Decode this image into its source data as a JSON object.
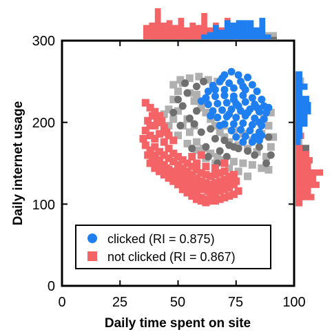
{
  "chart_data": {
    "type": "scatter",
    "xlabel": "Daily time spent on site",
    "ylabel": "Daily internet usage",
    "xlim": [
      0,
      100
    ],
    "ylim": [
      0,
      300
    ],
    "xticks": [
      0,
      25,
      50,
      75,
      100
    ],
    "yticks": [
      0,
      100,
      200,
      300
    ],
    "legend_position": "lower-center",
    "marginals": "top and right histograms",
    "series": [
      {
        "name": "clicked (RI = 0.875)",
        "marker": "circle",
        "color": "#1f7ff0",
        "shadow_color": "#6f6f6f",
        "points": [
          [
            70,
            258
          ],
          [
            73,
            262
          ],
          [
            76,
            258
          ],
          [
            80,
            255
          ],
          [
            65,
            245
          ],
          [
            68,
            250
          ],
          [
            72,
            248
          ],
          [
            77,
            250
          ],
          [
            82,
            246
          ],
          [
            63,
            238
          ],
          [
            66,
            240
          ],
          [
            70,
            240
          ],
          [
            74,
            242
          ],
          [
            79,
            240
          ],
          [
            84,
            238
          ],
          [
            62,
            230
          ],
          [
            66,
            232
          ],
          [
            70,
            233
          ],
          [
            74,
            232
          ],
          [
            78,
            233
          ],
          [
            82,
            230
          ],
          [
            86,
            228
          ],
          [
            63,
            222
          ],
          [
            67,
            223
          ],
          [
            71,
            224
          ],
          [
            75,
            223
          ],
          [
            79,
            225
          ],
          [
            83,
            222
          ],
          [
            87,
            220
          ],
          [
            65,
            214
          ],
          [
            69,
            215
          ],
          [
            73,
            216
          ],
          [
            77,
            214
          ],
          [
            81,
            216
          ],
          [
            85,
            213
          ],
          [
            88,
            212
          ],
          [
            67,
            206
          ],
          [
            71,
            207
          ],
          [
            75,
            206
          ],
          [
            79,
            208
          ],
          [
            83,
            205
          ],
          [
            87,
            204
          ],
          [
            70,
            198
          ],
          [
            74,
            198
          ],
          [
            78,
            199
          ],
          [
            82,
            197
          ],
          [
            86,
            196
          ],
          [
            73,
            190
          ],
          [
            77,
            191
          ],
          [
            81,
            190
          ],
          [
            85,
            188
          ],
          [
            75,
            182
          ],
          [
            79,
            183
          ],
          [
            83,
            182
          ],
          [
            86,
            184
          ],
          [
            78,
            176
          ],
          [
            82,
            176
          ],
          [
            85,
            178
          ],
          [
            60,
            226
          ],
          [
            64,
            208
          ],
          [
            68,
            196
          ],
          [
            89,
            218
          ],
          [
            69,
            254
          ],
          [
            78,
            244
          ],
          [
            85,
            200
          ],
          [
            72,
            210
          ],
          [
            76,
            220
          ],
          [
            80,
            212
          ],
          [
            74,
            228
          ],
          [
            84,
            218
          ]
        ],
        "shadow_points": [
          [
            50,
            228
          ],
          [
            54,
            236
          ],
          [
            58,
            214
          ],
          [
            55,
            205
          ],
          [
            60,
            188
          ],
          [
            64,
            192
          ],
          [
            58,
            244
          ],
          [
            52,
            220
          ],
          [
            66,
            180
          ],
          [
            70,
            178
          ],
          [
            62,
            170
          ],
          [
            68,
            165
          ],
          [
            74,
            170
          ],
          [
            57,
            198
          ],
          [
            85,
            170
          ],
          [
            89,
            182
          ],
          [
            90,
            160
          ],
          [
            80,
            165
          ],
          [
            63,
            158
          ],
          [
            53,
            248
          ],
          [
            56,
            168
          ],
          [
            61,
            250
          ],
          [
            72,
            172
          ],
          [
            76,
            168
          ],
          [
            48,
            212
          ],
          [
            51,
            196
          ],
          [
            88,
            150
          ],
          [
            67,
            150
          ],
          [
            83,
            160
          ],
          [
            71,
            158
          ]
        ]
      },
      {
        "name": "not clicked (RI = 0.867)",
        "marker": "square",
        "color": "#f46466",
        "shadow_color": "#b0b0b0",
        "points": [
          [
            36,
            224
          ],
          [
            38,
            218
          ],
          [
            40,
            213
          ],
          [
            42,
            208
          ],
          [
            40,
            196
          ],
          [
            37,
            202
          ],
          [
            36,
            190
          ],
          [
            38,
            184
          ],
          [
            40,
            180
          ],
          [
            42,
            186
          ],
          [
            44,
            194
          ],
          [
            36,
            172
          ],
          [
            38,
            166
          ],
          [
            40,
            160
          ],
          [
            42,
            154
          ],
          [
            44,
            148
          ],
          [
            46,
            142
          ],
          [
            48,
            136
          ],
          [
            50,
            130
          ],
          [
            52,
            124
          ],
          [
            54,
            120
          ],
          [
            56,
            116
          ],
          [
            58,
            112
          ],
          [
            60,
            108
          ],
          [
            62,
            106
          ],
          [
            64,
            104
          ],
          [
            66,
            104
          ],
          [
            68,
            106
          ],
          [
            70,
            108
          ],
          [
            72,
            110
          ],
          [
            74,
            112
          ],
          [
            76,
            116
          ],
          [
            38,
            150
          ],
          [
            40,
            144
          ],
          [
            42,
            140
          ],
          [
            44,
            136
          ],
          [
            46,
            132
          ],
          [
            48,
            128
          ],
          [
            50,
            124
          ],
          [
            52,
            118
          ],
          [
            54,
            114
          ],
          [
            56,
            110
          ],
          [
            58,
            106
          ],
          [
            60,
            104
          ],
          [
            62,
            102
          ],
          [
            64,
            108
          ],
          [
            66,
            112
          ],
          [
            68,
            116
          ],
          [
            70,
            118
          ],
          [
            72,
            120
          ],
          [
            74,
            124
          ],
          [
            40,
            170
          ],
          [
            42,
            164
          ],
          [
            44,
            160
          ],
          [
            46,
            156
          ],
          [
            48,
            152
          ],
          [
            50,
            148
          ],
          [
            52,
            144
          ],
          [
            54,
            140
          ],
          [
            56,
            136
          ],
          [
            58,
            132
          ],
          [
            60,
            128
          ],
          [
            62,
            126
          ],
          [
            64,
            124
          ],
          [
            66,
            126
          ],
          [
            68,
            128
          ],
          [
            70,
            130
          ],
          [
            72,
            134
          ],
          [
            74,
            136
          ],
          [
            44,
            176
          ],
          [
            46,
            168
          ],
          [
            48,
            162
          ],
          [
            50,
            158
          ],
          [
            52,
            154
          ],
          [
            54,
            150
          ],
          [
            56,
            146
          ],
          [
            58,
            142
          ],
          [
            60,
            138
          ],
          [
            62,
            136
          ],
          [
            64,
            134
          ],
          [
            66,
            136
          ],
          [
            68,
            138
          ],
          [
            70,
            140
          ],
          [
            38,
            196
          ],
          [
            39,
            208
          ],
          [
            41,
            200
          ],
          [
            43,
            202
          ],
          [
            45,
            188
          ],
          [
            46,
            184
          ],
          [
            48,
            178
          ],
          [
            35,
            180
          ],
          [
            37,
            160
          ],
          [
            39,
            156
          ],
          [
            41,
            150
          ],
          [
            43,
            146
          ],
          [
            45,
            144
          ],
          [
            47,
            140
          ],
          [
            49,
            140
          ],
          [
            51,
            136
          ],
          [
            53,
            132
          ],
          [
            55,
            128
          ],
          [
            57,
            124
          ],
          [
            59,
            120
          ],
          [
            61,
            118
          ],
          [
            63,
            116
          ],
          [
            65,
            118
          ],
          [
            67,
            120
          ],
          [
            69,
            122
          ],
          [
            71,
            124
          ],
          [
            73,
            126
          ],
          [
            75,
            128
          ],
          [
            58,
            150
          ],
          [
            62,
            146
          ],
          [
            66,
            144
          ],
          [
            70,
            150
          ],
          [
            60,
            160
          ],
          [
            56,
            158
          ]
        ],
        "shadow_points": [
          [
            52,
            248
          ],
          [
            55,
            236
          ],
          [
            57,
            226
          ],
          [
            60,
            218
          ],
          [
            62,
            212
          ],
          [
            64,
            204
          ],
          [
            66,
            196
          ],
          [
            68,
            188
          ],
          [
            70,
            182
          ],
          [
            72,
            176
          ],
          [
            76,
            172
          ],
          [
            80,
            168
          ],
          [
            84,
            164
          ],
          [
            88,
            158
          ],
          [
            90,
            170
          ],
          [
            91,
            182
          ],
          [
            89,
            196
          ],
          [
            87,
            206
          ],
          [
            90,
            212
          ],
          [
            86,
            186
          ],
          [
            82,
            178
          ],
          [
            78,
            186
          ],
          [
            74,
            190
          ],
          [
            70,
            196
          ],
          [
            66,
            206
          ],
          [
            62,
            224
          ],
          [
            58,
            234
          ],
          [
            50,
            238
          ],
          [
            48,
            228
          ],
          [
            46,
            216
          ],
          [
            48,
            204
          ],
          [
            52,
            196
          ],
          [
            55,
            188
          ],
          [
            58,
            176
          ],
          [
            61,
            168
          ],
          [
            64,
            162
          ],
          [
            67,
            158
          ],
          [
            70,
            154
          ],
          [
            74,
            152
          ],
          [
            78,
            150
          ],
          [
            82,
            148
          ],
          [
            86,
            144
          ],
          [
            89,
            142
          ],
          [
            76,
            140
          ],
          [
            80,
            134
          ],
          [
            72,
            144
          ],
          [
            66,
            150
          ],
          [
            62,
            156
          ],
          [
            58,
            166
          ],
          [
            54,
            174
          ],
          [
            50,
            184
          ],
          [
            46,
            196
          ],
          [
            44,
            210
          ],
          [
            50,
            214
          ],
          [
            54,
            204
          ],
          [
            57,
            196
          ],
          [
            48,
            246
          ],
          [
            51,
            252
          ],
          [
            55,
            254
          ],
          [
            59,
            256
          ],
          [
            63,
            252
          ],
          [
            67,
            250
          ]
        ]
      }
    ]
  },
  "legend": {
    "clicked_label": "clicked (RI = 0.875)",
    "not_clicked_label": "not clicked (RI = 0.867)"
  },
  "axes": {
    "xlabel": "Daily time spent on site",
    "ylabel": "Daily internet usage",
    "xtick_labels": [
      "0",
      "25",
      "50",
      "75",
      "100"
    ],
    "ytick_labels": [
      "0",
      "100",
      "200",
      "300"
    ]
  },
  "colors": {
    "clicked": "#1f7ff0",
    "not_clicked": "#f46466",
    "clicked_shadow": "#6f6f6f",
    "not_clicked_shadow": "#b0b0b0"
  }
}
